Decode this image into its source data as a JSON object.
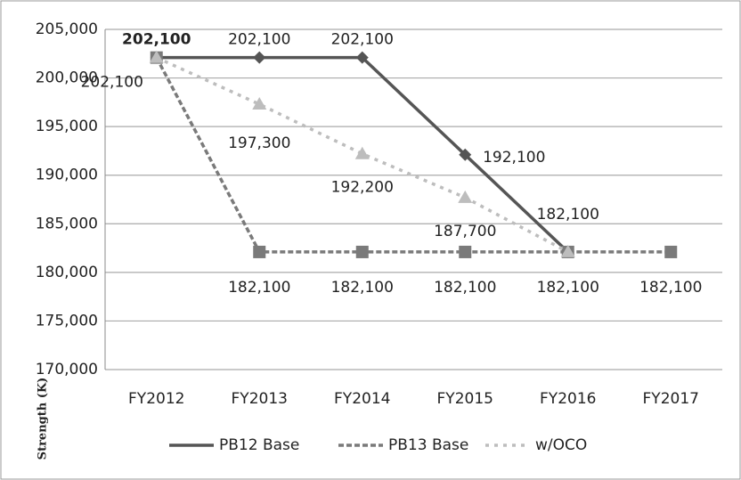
{
  "chart_data": {
    "type": "line",
    "categories": [
      "FY2012",
      "FY2013",
      "FY2014",
      "FY2015",
      "FY2016",
      "FY2017"
    ],
    "y_axis_label": "Strength (K)",
    "series": [
      {
        "name": "PB12 Base",
        "color": "#555555",
        "values": [
          202100,
          202100,
          202100,
          192100,
          182100,
          null
        ],
        "value_labels": [
          "202,100",
          "202,100",
          "202,100",
          "192,100",
          "182,100",
          null
        ]
      },
      {
        "name": "PB13 Base",
        "color": "#7a7a7a",
        "values": [
          202100,
          182100,
          182100,
          182100,
          182100,
          182100
        ],
        "value_labels": [
          "202,100",
          "182,100",
          "182,100",
          "182,100",
          "182,100",
          "182,100"
        ]
      },
      {
        "name": "w/OCO",
        "color": "#bdbdbd",
        "values": [
          202100,
          197300,
          192200,
          187700,
          182100,
          null
        ],
        "value_labels": [
          null,
          "197,300",
          "192,200",
          "187,700",
          null,
          null
        ]
      }
    ],
    "ylim": [
      170000,
      205000
    ],
    "yticks": [
      {
        "value": 170000,
        "label": "170,000"
      },
      {
        "value": 175000,
        "label": "175,000"
      },
      {
        "value": 180000,
        "label": "180,000"
      },
      {
        "value": 185000,
        "label": "185,000"
      },
      {
        "value": 190000,
        "label": "190,000"
      },
      {
        "value": 195000,
        "label": "195,000"
      },
      {
        "value": 200000,
        "label": "200,000"
      },
      {
        "value": 205000,
        "label": "205,000"
      }
    ],
    "grid": true,
    "legend": "bottom"
  }
}
